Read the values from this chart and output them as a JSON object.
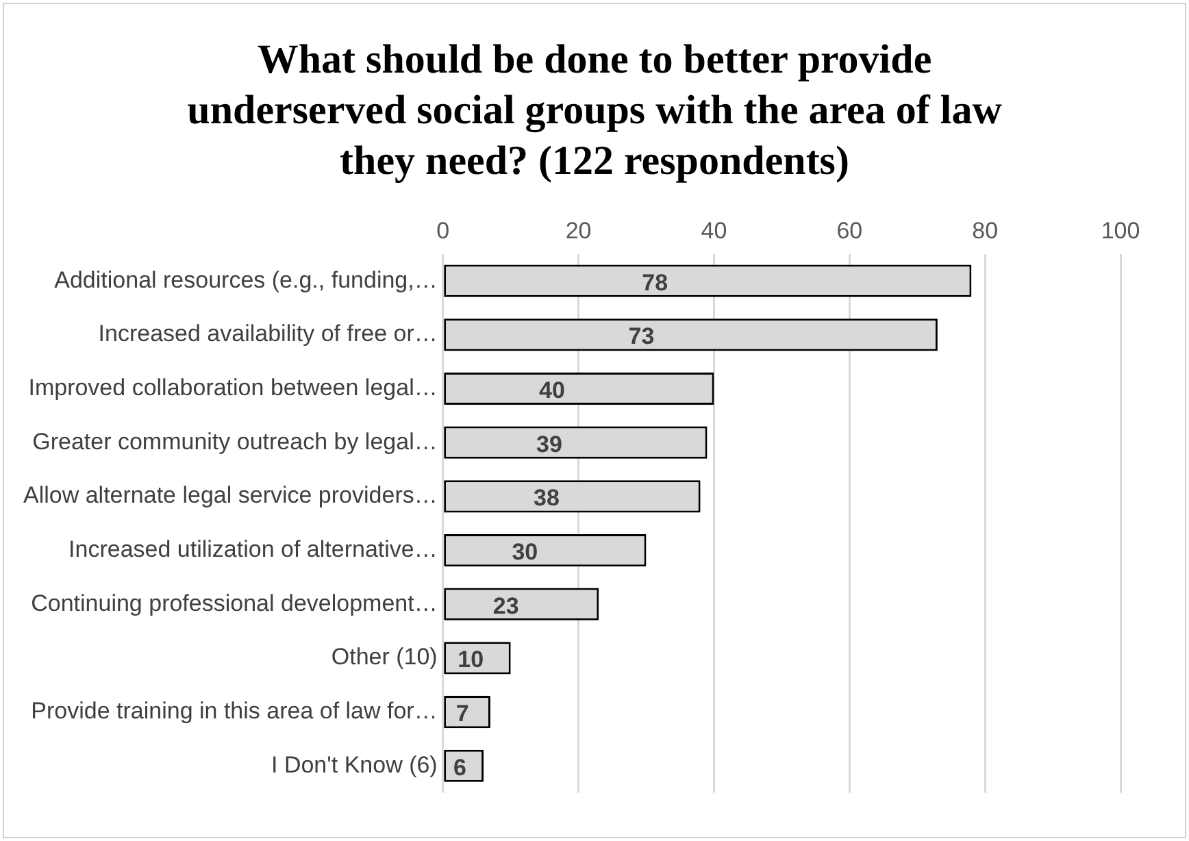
{
  "chart_data": {
    "type": "bar",
    "orientation": "horizontal",
    "title": "What should be done to better provide underserved social groups with the area of law they need? (122 respondents)",
    "categories": [
      "Additional resources (e.g., funding,…",
      "Increased availability of free or…",
      "Improved collaboration between legal…",
      "Greater community outreach by legal…",
      "Allow alternate legal service providers…",
      "Increased utilization of alternative…",
      "Continuing professional development…",
      "Other (10)",
      "Provide training in this area of law for…",
      "I Don't Know (6)"
    ],
    "values": [
      78,
      73,
      40,
      39,
      38,
      30,
      23,
      10,
      7,
      6
    ],
    "color": "#d9d9d9",
    "xlim": [
      0,
      100
    ],
    "xticks": [
      0,
      20,
      40,
      60,
      80,
      100
    ],
    "grid": "x",
    "legend": false,
    "data_labels": true
  }
}
